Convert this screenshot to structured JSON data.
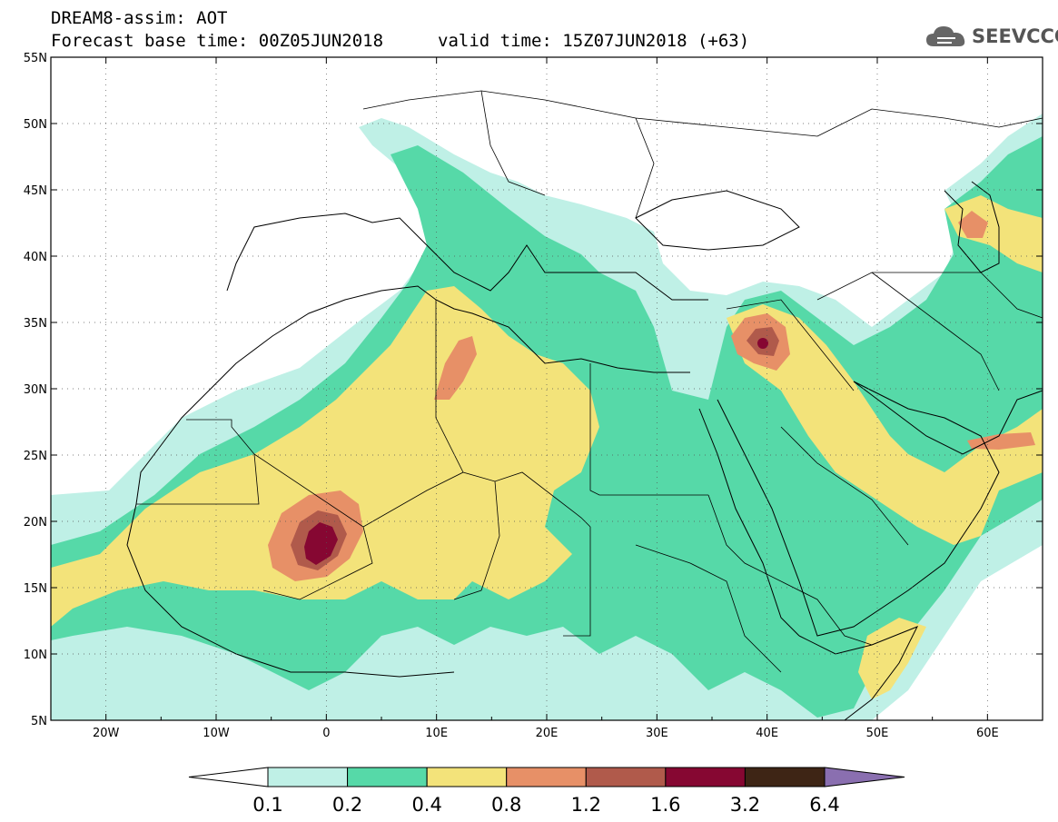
{
  "header": {
    "title": "DREAM8-assim: AOT",
    "base_time": "Forecast base time: 00Z05JUN2018",
    "valid_time": "valid time: 15Z07JUN2018 (+63)"
  },
  "logo": {
    "text": "SEEVCCC",
    "icon": "cloud-icon"
  },
  "map": {
    "lon_range": [
      -25,
      65
    ],
    "lat_range": [
      5,
      55
    ],
    "lat_ticks": [
      "55N",
      "50N",
      "45N",
      "40N",
      "35N",
      "30N",
      "25N",
      "20N",
      "15N",
      "10N",
      "5N"
    ],
    "lon_ticks": [
      "20W",
      "10W",
      "0",
      "10E",
      "20E",
      "30E",
      "40E",
      "50E",
      "60E"
    ],
    "grid": "dotted"
  },
  "colorbar": {
    "labels": [
      "0.1",
      "0.2",
      "0.4",
      "0.8",
      "1.2",
      "1.6",
      "3.2",
      "6.4"
    ],
    "colors": [
      "#ffffff",
      "#bff0e6",
      "#56d9a8",
      "#f3e37a",
      "#e79067",
      "#b05a4b",
      "#860732",
      "#3e2515",
      "#8a6fb0"
    ]
  }
}
